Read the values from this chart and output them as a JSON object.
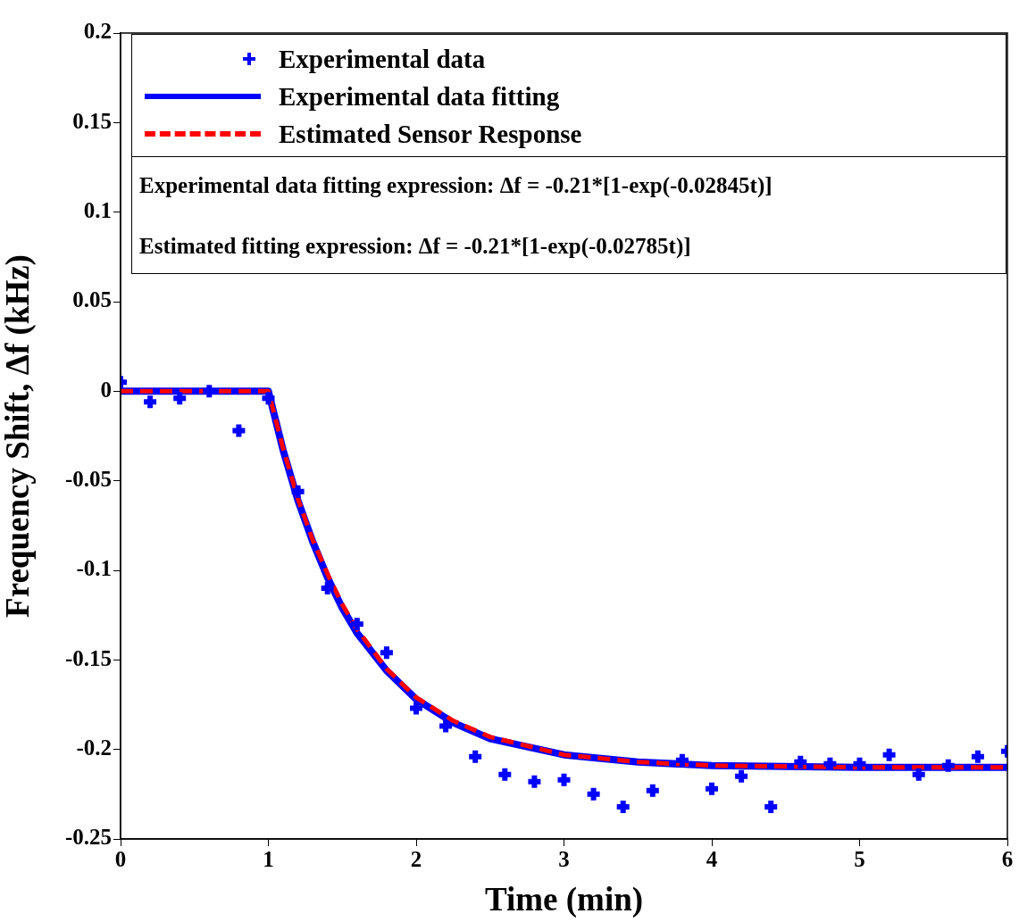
{
  "chart_data": {
    "type": "scatter",
    "xlabel": "Time (min)",
    "ylabel": "Frequency Shift, Δf (kHz)",
    "xlim": [
      0,
      6
    ],
    "xticks": [
      0,
      1,
      2,
      3,
      4,
      5,
      6
    ],
    "ylim": [
      -0.25,
      0.2
    ],
    "yticks": [
      -0.25,
      -0.2,
      -0.15,
      -0.1,
      -0.05,
      0,
      0.05,
      0.1,
      0.15,
      0.2
    ],
    "grid": false,
    "legend": "top",
    "annotations": [
      "Experimental data fitting expression: Δf = -0.21*[1-exp(-0.02845t)]",
      "Estimated fitting expression: Δf = -0.21*[1-exp(-0.02785t)]"
    ],
    "series": [
      {
        "name": "Experimental data",
        "type": "scatter",
        "color": "#0000ff",
        "marker": "cross",
        "x": [
          0,
          0.2,
          0.4,
          0.6,
          0.8,
          1,
          1.2,
          1.4,
          1.6,
          1.8,
          2,
          2.2,
          2.4,
          2.6,
          2.8,
          3,
          3.2,
          3.4,
          3.6,
          3.8,
          4,
          4.2,
          4.4,
          4.6,
          4.8,
          5,
          5.2,
          5.4,
          5.6,
          5.8,
          6
        ],
        "values": [
          0.005,
          -0.006,
          -0.004,
          0,
          -0.022,
          -0.004,
          -0.056,
          -0.11,
          -0.13,
          -0.146,
          -0.177,
          -0.187,
          -0.204,
          -0.214,
          -0.218,
          -0.217,
          -0.225,
          -0.232,
          -0.223,
          -0.206,
          -0.222,
          -0.215,
          -0.232,
          -0.207,
          -0.208,
          -0.208,
          -0.203,
          -0.214,
          -0.209,
          -0.204,
          -0.201
        ]
      },
      {
        "name": "Experimental data fitting",
        "type": "line",
        "color": "#0000ff",
        "line_style": "solid",
        "marker": "none",
        "x": [
          0,
          1,
          1.1,
          1.2,
          1.3,
          1.4,
          1.5,
          1.6,
          1.8,
          2,
          2.25,
          2.5,
          3,
          3.5,
          4,
          5,
          6
        ],
        "values": [
          0,
          0,
          -0.033,
          -0.061,
          -0.084,
          -0.104,
          -0.121,
          -0.135,
          -0.156,
          -0.172,
          -0.185,
          -0.194,
          -0.203,
          -0.207,
          -0.209,
          -0.21,
          -0.21
        ]
      },
      {
        "name": "Estimated Sensor Response",
        "type": "line",
        "color": "#ff0000",
        "line_style": "dashed",
        "marker": "none",
        "x": [
          0,
          1,
          1.1,
          1.2,
          1.3,
          1.4,
          1.5,
          1.6,
          1.8,
          2,
          2.25,
          2.5,
          3,
          3.5,
          4,
          5,
          6
        ],
        "values": [
          0,
          0,
          -0.032,
          -0.06,
          -0.083,
          -0.102,
          -0.119,
          -0.133,
          -0.155,
          -0.171,
          -0.184,
          -0.193,
          -0.203,
          -0.207,
          -0.209,
          -0.21,
          -0.21
        ]
      }
    ]
  }
}
